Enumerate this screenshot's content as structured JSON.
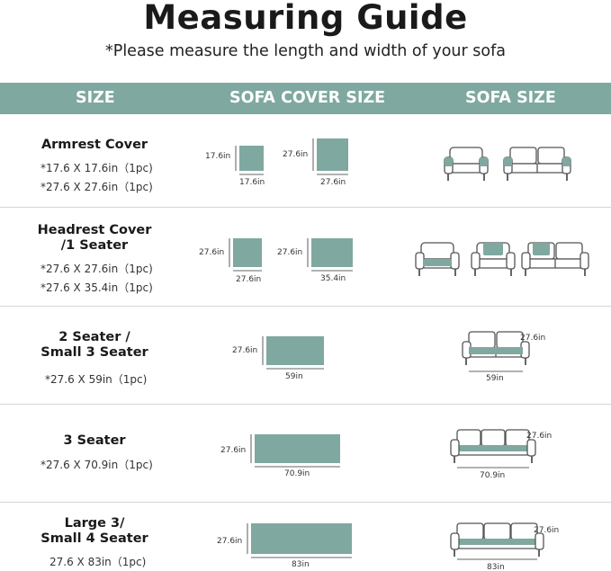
{
  "title": "Measuring Guide",
  "subtitle": "*Please measure the length and width of your sofa",
  "header": {
    "col1": "SIZE",
    "col2": "SOFA COVER SIZE",
    "col3": "SOFA SIZE"
  },
  "colors": {
    "accent": "#7fa8a0",
    "swatch": "#7fa8a0",
    "outline": "#555555"
  },
  "rows": [
    {
      "name_line1": "Armrest Cover",
      "name_line2": "",
      "size1": "*17.6 X 17.6in（1pc)",
      "size2": "*27.6 X 27.6in（1pc)",
      "dims": [
        "17.6in",
        "17.6in",
        "27.6in",
        "27.6in"
      ]
    },
    {
      "name_line1": "Headrest Cover",
      "name_line2": "/1 Seater",
      "size1": "*27.6 X 27.6in（1pc)",
      "size2": "*27.6 X 35.4in（1pc)",
      "dims": [
        "27.6in",
        "27.6in",
        "27.6in",
        "35.4in"
      ]
    },
    {
      "name_line1": "2 Seater /",
      "name_line2": "Small 3 Seater",
      "size1": "*27.6 X 59in（1pc)",
      "dims": [
        "27.6in",
        "59in"
      ],
      "sofa_dims": [
        "27.6in",
        "59in"
      ]
    },
    {
      "name_line1": "3 Seater",
      "name_line2": "",
      "size1": "*27.6 X 70.9in（1pc)",
      "dims": [
        "27.6in",
        "70.9in"
      ],
      "sofa_dims": [
        "27.6in",
        "70.9in"
      ]
    },
    {
      "name_line1": "Large 3/",
      "name_line2": "Small 4 Seater",
      "size1": "27.6 X 83in（1pc)",
      "dims": [
        "27.6in",
        "83in"
      ],
      "sofa_dims": [
        "27.6in",
        "83in"
      ]
    }
  ]
}
